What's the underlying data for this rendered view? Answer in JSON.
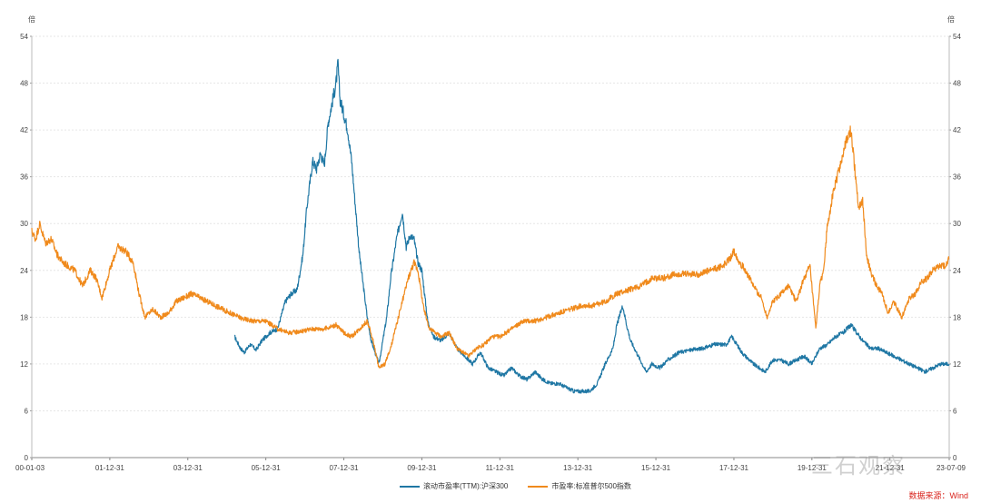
{
  "chart_data": {
    "type": "line",
    "y_unit_left": "倍",
    "y_unit_right": "倍",
    "ylim": [
      0,
      54
    ],
    "yticks": [
      0,
      6,
      12,
      18,
      24,
      30,
      36,
      42,
      48,
      54
    ],
    "x_range": [
      2000.0,
      2023.52
    ],
    "xtick_labels": [
      "00-01-03",
      "01-12-31",
      "03-12-31",
      "05-12-31",
      "07-12-31",
      "09-12-31",
      "11-12-31",
      "13-12-31",
      "15-12-31",
      "17-12-31",
      "19-12-31",
      "21-12-31",
      "23-07-09"
    ],
    "xtick_positions": [
      2000.0,
      2002.0,
      2004.0,
      2006.0,
      2008.0,
      2010.0,
      2012.0,
      2014.0,
      2016.0,
      2018.0,
      2020.0,
      2022.0,
      2023.52
    ],
    "series": [
      {
        "name": "滚动市盈率(TTM):沪深300",
        "color": "#1f77a4",
        "x": [
          2005.2,
          2005.35,
          2005.45,
          2005.6,
          2005.75,
          2005.9,
          2006.1,
          2006.3,
          2006.5,
          2006.65,
          2006.8,
          2006.95,
          2007.05,
          2007.2,
          2007.3,
          2007.4,
          2007.5,
          2007.6,
          2007.7,
          2007.8,
          2007.85,
          2007.9,
          2008.0,
          2008.1,
          2008.2,
          2008.3,
          2008.4,
          2008.5,
          2008.6,
          2008.7,
          2008.8,
          2008.9,
          2009.0,
          2009.1,
          2009.2,
          2009.35,
          2009.5,
          2009.6,
          2009.7,
          2009.8,
          2009.9,
          2010.0,
          2010.15,
          2010.3,
          2010.5,
          2010.7,
          2010.9,
          2011.1,
          2011.3,
          2011.5,
          2011.7,
          2011.9,
          2012.1,
          2012.3,
          2012.5,
          2012.7,
          2012.9,
          2013.1,
          2013.3,
          2013.5,
          2013.7,
          2013.9,
          2014.1,
          2014.3,
          2014.5,
          2014.7,
          2014.9,
          2015.0,
          2015.15,
          2015.25,
          2015.35,
          2015.45,
          2015.6,
          2015.75,
          2015.9,
          2016.1,
          2016.3,
          2016.6,
          2016.9,
          2017.2,
          2017.5,
          2017.8,
          2017.95,
          2018.2,
          2018.5,
          2018.8,
          2019.0,
          2019.2,
          2019.4,
          2019.6,
          2019.8,
          2020.0,
          2020.2,
          2020.4,
          2020.6,
          2020.8,
          2021.0,
          2021.15,
          2021.3,
          2021.5,
          2021.7,
          2021.9,
          2022.1,
          2022.3,
          2022.5,
          2022.7,
          2022.9,
          2023.1,
          2023.3,
          2023.52
        ],
        "values": [
          15.5,
          14.0,
          13.5,
          14.5,
          13.8,
          15.0,
          16.0,
          16.5,
          20.0,
          21.0,
          21.5,
          26.0,
          32.0,
          38.0,
          37.0,
          39.0,
          37.5,
          43.0,
          45.5,
          48.0,
          50.5,
          46.0,
          44.0,
          42.0,
          38.0,
          32.0,
          26.0,
          22.0,
          18.0,
          15.0,
          13.5,
          12.0,
          15.0,
          18.0,
          23.0,
          28.0,
          31.5,
          27.0,
          28.5,
          28.0,
          25.0,
          24.0,
          17.5,
          15.5,
          15.0,
          16.0,
          14.0,
          13.0,
          12.0,
          13.5,
          11.5,
          11.0,
          10.5,
          11.5,
          10.5,
          10.0,
          11.0,
          10.0,
          9.5,
          9.5,
          9.0,
          8.5,
          8.5,
          8.5,
          9.5,
          12.0,
          14.0,
          17.0,
          19.5,
          17.0,
          15.0,
          14.0,
          12.5,
          11.0,
          12.0,
          11.5,
          12.5,
          13.5,
          13.8,
          14.0,
          14.5,
          14.5,
          15.5,
          13.5,
          12.0,
          11.0,
          12.5,
          12.5,
          12.0,
          12.5,
          13.0,
          12.0,
          14.0,
          14.5,
          15.5,
          16.0,
          17.0,
          16.0,
          15.0,
          14.0,
          14.0,
          13.5,
          13.0,
          12.5,
          12.0,
          11.5,
          11.0,
          11.5,
          12.0,
          12.0
        ]
      },
      {
        "name": "市盈率:标准普尔500指数",
        "color": "#f08a1c",
        "x": [
          2000.0,
          2000.1,
          2000.2,
          2000.35,
          2000.5,
          2000.65,
          2000.8,
          2000.95,
          2001.1,
          2001.3,
          2001.5,
          2001.65,
          2001.8,
          2002.0,
          2002.2,
          2002.4,
          2002.6,
          2002.75,
          2002.9,
          2003.1,
          2003.3,
          2003.5,
          2003.7,
          2003.9,
          2004.1,
          2004.3,
          2004.5,
          2004.7,
          2004.9,
          2005.1,
          2005.4,
          2005.7,
          2006.0,
          2006.3,
          2006.6,
          2006.9,
          2007.2,
          2007.5,
          2007.8,
          2008.0,
          2008.2,
          2008.4,
          2008.6,
          2008.75,
          2008.9,
          2009.05,
          2009.2,
          2009.35,
          2009.5,
          2009.65,
          2009.8,
          2009.9,
          2010.05,
          2010.2,
          2010.35,
          2010.5,
          2010.7,
          2010.9,
          2011.05,
          2011.2,
          2011.4,
          2011.6,
          2011.8,
          2012.0,
          2012.3,
          2012.6,
          2012.9,
          2013.2,
          2013.5,
          2013.8,
          2014.1,
          2014.4,
          2014.7,
          2015.0,
          2015.3,
          2015.6,
          2015.9,
          2016.2,
          2016.5,
          2016.8,
          2017.1,
          2017.4,
          2017.7,
          2017.9,
          2018.0,
          2018.15,
          2018.3,
          2018.5,
          2018.7,
          2018.85,
          2019.0,
          2019.2,
          2019.4,
          2019.6,
          2019.8,
          2019.95,
          2020.1,
          2020.2,
          2020.3,
          2020.4,
          2020.55,
          2020.7,
          2020.85,
          2021.0,
          2021.1,
          2021.2,
          2021.3,
          2021.4,
          2021.5,
          2021.65,
          2021.8,
          2021.95,
          2022.1,
          2022.3,
          2022.5,
          2022.65,
          2022.8,
          2022.95,
          2023.1,
          2023.25,
          2023.4,
          2023.52
        ],
        "values": [
          29.0,
          28.0,
          30.0,
          27.5,
          28.0,
          26.0,
          25.0,
          24.5,
          24.0,
          22.0,
          24.0,
          23.0,
          20.5,
          24.0,
          27.0,
          26.5,
          25.0,
          21.0,
          18.0,
          19.0,
          18.0,
          18.5,
          20.0,
          20.5,
          21.0,
          20.5,
          20.0,
          19.5,
          19.0,
          18.5,
          17.8,
          17.5,
          17.5,
          16.5,
          16.0,
          16.2,
          16.5,
          16.5,
          17.0,
          16.0,
          15.5,
          16.5,
          17.5,
          15.0,
          11.5,
          12.0,
          14.0,
          17.0,
          20.0,
          23.0,
          25.0,
          24.0,
          19.0,
          16.5,
          16.0,
          15.5,
          16.0,
          14.0,
          13.5,
          13.0,
          14.0,
          14.5,
          15.5,
          15.5,
          16.5,
          17.5,
          17.5,
          18.0,
          18.5,
          19.0,
          19.5,
          19.5,
          20.0,
          21.0,
          21.5,
          22.0,
          23.0,
          23.0,
          23.5,
          23.5,
          23.5,
          24.0,
          24.5,
          25.5,
          26.5,
          25.0,
          24.0,
          22.0,
          20.5,
          18.0,
          20.0,
          21.0,
          22.0,
          20.0,
          23.0,
          24.5,
          16.5,
          22.0,
          24.0,
          30.0,
          34.0,
          37.0,
          40.0,
          42.0,
          37.0,
          32.0,
          33.0,
          26.0,
          24.0,
          22.0,
          21.0,
          18.5,
          20.0,
          18.0,
          20.5,
          21.0,
          22.5,
          23.0,
          24.0,
          24.5,
          24.5,
          25.5
        ]
      }
    ]
  },
  "legend": {
    "series1_label": "滚动市盈率(TTM):沪深300",
    "series2_label": "市盈率:标准普尔500指数"
  },
  "source_text": "数据来源：Wind",
  "watermark_text": "三石观察",
  "colors": {
    "series1": "#1f77a4",
    "series2": "#f08a1c",
    "grid": "#e6e6e6",
    "source": "#d9231c"
  }
}
